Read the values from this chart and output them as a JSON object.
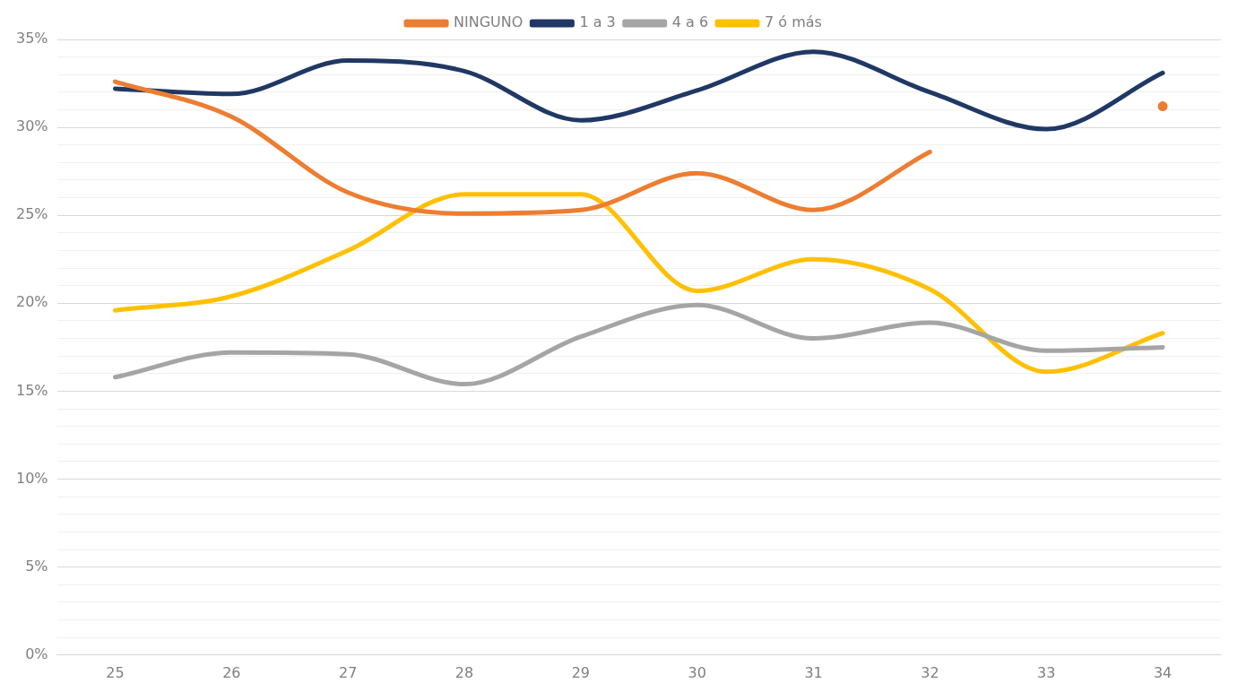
{
  "chart_data": {
    "type": "line",
    "categories": [
      "25",
      "26",
      "27",
      "28",
      "29",
      "30",
      "31",
      "32",
      "33",
      "34"
    ],
    "series": [
      {
        "name": "NINGUNO",
        "color": "#ed7d31",
        "values": [
          32.6,
          30.6,
          26.3,
          25.1,
          25.3,
          27.4,
          25.3,
          28.6,
          null,
          31.2
        ]
      },
      {
        "name": "1 a 3",
        "color": "#203864",
        "values": [
          32.2,
          31.9,
          33.8,
          33.2,
          30.4,
          32.1,
          34.3,
          32.0,
          29.9,
          33.1
        ]
      },
      {
        "name": "4 a 6",
        "color": "#a5a5a5",
        "values": [
          15.8,
          17.2,
          17.1,
          15.4,
          18.1,
          19.9,
          18.0,
          18.9,
          17.3,
          17.5
        ]
      },
      {
        "name": "7 ó más",
        "color": "#ffc000",
        "values": [
          19.6,
          20.4,
          23.0,
          26.2,
          26.2,
          20.7,
          22.5,
          20.8,
          16.1,
          18.3
        ]
      }
    ],
    "ylim": [
      0,
      35
    ],
    "yticks": [
      {
        "value": 0,
        "label": "0%"
      },
      {
        "value": 1,
        "label": null
      },
      {
        "value": 2,
        "label": null
      },
      {
        "value": 3,
        "label": null
      },
      {
        "value": 4,
        "label": null
      },
      {
        "value": 5,
        "label": "5%"
      },
      {
        "value": 6,
        "label": null
      },
      {
        "value": 7,
        "label": null
      },
      {
        "value": 8,
        "label": null
      },
      {
        "value": 9,
        "label": null
      },
      {
        "value": 10,
        "label": "10%"
      },
      {
        "value": 11,
        "label": null
      },
      {
        "value": 12,
        "label": null
      },
      {
        "value": 13,
        "label": null
      },
      {
        "value": 14,
        "label": null
      },
      {
        "value": 15,
        "label": "15%"
      },
      {
        "value": 16,
        "label": null
      },
      {
        "value": 17,
        "label": null
      },
      {
        "value": 18,
        "label": null
      },
      {
        "value": 19,
        "label": null
      },
      {
        "value": 20,
        "label": "20%"
      },
      {
        "value": 21,
        "label": null
      },
      {
        "value": 22,
        "label": null
      },
      {
        "value": 23,
        "label": null
      },
      {
        "value": 24,
        "label": null
      },
      {
        "value": 25,
        "label": "25%"
      },
      {
        "value": 26,
        "label": null
      },
      {
        "value": 27,
        "label": null
      },
      {
        "value": 28,
        "label": null
      },
      {
        "value": 29,
        "label": null
      },
      {
        "value": 30,
        "label": "30%"
      },
      {
        "value": 31,
        "label": null
      },
      {
        "value": 32,
        "label": null
      },
      {
        "value": 33,
        "label": null
      },
      {
        "value": 34,
        "label": null
      },
      {
        "value": 35,
        "label": "35%"
      }
    ],
    "grid": "y",
    "legend": "top",
    "marker": "none",
    "line_style": "solid"
  }
}
